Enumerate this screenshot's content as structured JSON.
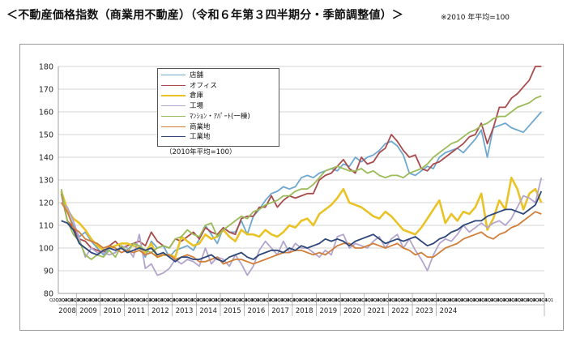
{
  "header": {
    "title": "＜不動産価格指数（商業用不動産）（令和６年第３四半期分・季節調整値）＞",
    "note": "※2010 年平均=100"
  },
  "chart_data": {
    "type": "line",
    "note": "（2010年平均=100）",
    "ylim": [
      80,
      180
    ],
    "yticks": [
      80,
      90,
      100,
      110,
      120,
      130,
      140,
      150,
      160,
      170,
      180
    ],
    "grid": true,
    "legend_position": "top-left",
    "quarter_label": "Q2Q3Q4Q1",
    "years": [
      "2008",
      "2009",
      "2010",
      "2011",
      "2012",
      "2013",
      "2014",
      "2015",
      "2016",
      "2017",
      "2018",
      "2019",
      "2020",
      "2021",
      "2022",
      "2023",
      "2024"
    ],
    "series": [
      {
        "name": "店舗",
        "color": "#6fa8cf",
        "width": 1.8,
        "values": [
          125,
          116,
          110,
          105,
          107,
          103,
          100,
          97,
          100,
          99,
          100,
          99,
          102,
          101,
          96,
          103,
          100,
          101,
          96,
          99,
          100,
          101,
          99,
          104,
          110,
          106,
          102,
          109,
          107,
          107,
          112,
          106,
          114,
          117,
          121,
          124,
          125,
          127,
          126,
          127,
          131,
          132,
          131,
          133,
          134,
          135,
          134,
          137,
          136,
          140,
          138,
          140,
          141,
          143,
          146,
          147,
          145,
          141,
          133,
          132,
          134,
          136,
          135,
          140,
          142,
          143,
          144,
          142,
          145,
          148,
          152,
          140,
          153,
          154,
          155,
          153,
          152,
          151,
          154,
          157,
          160
        ]
      },
      {
        "name": "オフィス",
        "color": "#a84b4d",
        "width": 1.8,
        "values": [
          124,
          112,
          109,
          104,
          103,
          100,
          99,
          98,
          101,
          103,
          100,
          101,
          102,
          103,
          101,
          107,
          103,
          101,
          100,
          104,
          103,
          105,
          107,
          104,
          109,
          107,
          106,
          109,
          107,
          106,
          113,
          114,
          114,
          118,
          118,
          123,
          118,
          121,
          123,
          122,
          123,
          124,
          124,
          130,
          132,
          133,
          136,
          139,
          135,
          133,
          140,
          137,
          138,
          142,
          144,
          150,
          147,
          143,
          140,
          141,
          135,
          134,
          137,
          138,
          140,
          142,
          144,
          146,
          149,
          150,
          155,
          146,
          153,
          162,
          162,
          166,
          168,
          171,
          174,
          180,
          180
        ]
      },
      {
        "name": "倉庫",
        "color": "#e9c326",
        "width": 2.6,
        "values": [
          125,
          117,
          113,
          111,
          108,
          104,
          101,
          99,
          100,
          101,
          102,
          102,
          101,
          100,
          98,
          102,
          96,
          97,
          97,
          96,
          105,
          103,
          101,
          102,
          106,
          104,
          105,
          108,
          105,
          103,
          108,
          106,
          106,
          105,
          108,
          106,
          105,
          107,
          110,
          109,
          112,
          113,
          110,
          115,
          117,
          119,
          122,
          126,
          120,
          119,
          118,
          116,
          114,
          113,
          116,
          114,
          111,
          108,
          107,
          106,
          109,
          113,
          117,
          121,
          111,
          115,
          112,
          116,
          115,
          118,
          124,
          108,
          113,
          121,
          117,
          131,
          126,
          117,
          124,
          126,
          120
        ]
      },
      {
        "name": "工場",
        "color": "#b3a5cd",
        "width": 1.8,
        "values": [
          120,
          118,
          112,
          104,
          96,
          100,
          98,
          98,
          97,
          98,
          101,
          100,
          96,
          106,
          91,
          93,
          88,
          89,
          91,
          95,
          93,
          95,
          94,
          92,
          100,
          93,
          96,
          95,
          92,
          97,
          93,
          88,
          92,
          99,
          103,
          100,
          97,
          103,
          98,
          102,
          100,
          100,
          98,
          96,
          99,
          97,
          105,
          106,
          100,
          102,
          101,
          100,
          103,
          105,
          100,
          104,
          106,
          100,
          104,
          99,
          95,
          90,
          97,
          102,
          104,
          103,
          106,
          110,
          107,
          109,
          111,
          109,
          111,
          112,
          110,
          113,
          118,
          123,
          122,
          120,
          131
        ]
      },
      {
        "name": "ﾏﾝｼｮﾝ・ｱﾊﾟｰﾄ(一棟)",
        "color": "#9bbb59",
        "width": 1.8,
        "values": [
          126,
          112,
          106,
          103,
          97,
          95,
          97,
          96,
          99,
          96,
          101,
          98,
          102,
          101,
          99,
          98,
          100,
          101,
          100,
          104,
          105,
          108,
          106,
          105,
          110,
          111,
          105,
          108,
          110,
          112,
          114,
          113,
          116,
          117,
          119,
          120,
          121,
          123,
          123,
          125,
          126,
          126,
          128,
          131,
          134,
          135,
          136,
          135,
          134,
          134,
          135,
          133,
          134,
          132,
          131,
          132,
          132,
          131,
          133,
          134,
          135,
          137,
          140,
          142,
          144,
          146,
          147,
          149,
          151,
          152,
          154,
          155,
          157,
          158,
          158,
          160,
          162,
          163,
          164,
          166,
          167
        ]
      },
      {
        "name": "商業地",
        "color": "#d07f3b",
        "width": 1.8,
        "values": [
          120,
          116,
          109,
          107,
          104,
          103,
          102,
          100,
          101,
          100,
          98,
          99,
          98,
          99,
          97,
          98,
          96,
          97,
          97,
          95,
          96,
          97,
          96,
          94,
          94,
          95,
          96,
          93,
          94,
          95,
          95,
          94,
          93,
          94,
          95,
          96,
          97,
          98,
          98,
          99,
          99,
          98,
          97,
          98,
          97,
          99,
          101,
          102,
          102,
          100,
          100,
          101,
          102,
          101,
          100,
          101,
          102,
          100,
          99,
          97,
          98,
          96,
          96,
          98,
          100,
          101,
          102,
          104,
          105,
          106,
          107,
          105,
          104,
          106,
          107,
          109,
          110,
          112,
          114,
          116,
          115
        ]
      },
      {
        "name": "工業地",
        "color": "#2e4779",
        "width": 1.8,
        "values": [
          112,
          111,
          108,
          102,
          100,
          98,
          97,
          99,
          100,
          99,
          100,
          98,
          99,
          100,
          99,
          100,
          97,
          98,
          96,
          94,
          96,
          96,
          95,
          95,
          96,
          97,
          95,
          94,
          96,
          97,
          98,
          96,
          95,
          97,
          98,
          99,
          99,
          98,
          100,
          99,
          101,
          100,
          101,
          102,
          104,
          103,
          104,
          103,
          101,
          103,
          104,
          105,
          106,
          104,
          102,
          103,
          104,
          103,
          104,
          105,
          103,
          101,
          102,
          104,
          105,
          107,
          108,
          110,
          111,
          112,
          112,
          114,
          115,
          116,
          117,
          117,
          116,
          115,
          117,
          119,
          125
        ]
      }
    ]
  }
}
